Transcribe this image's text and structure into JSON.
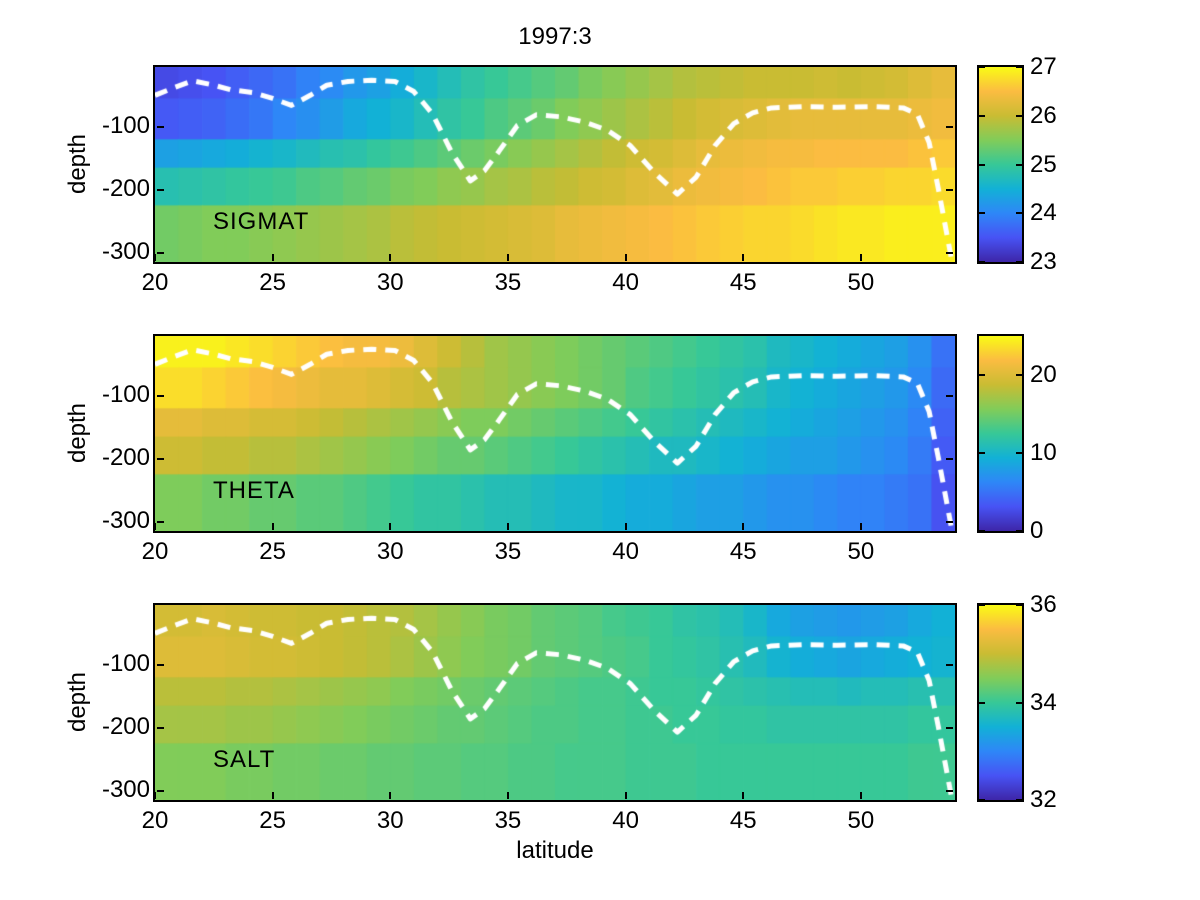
{
  "figure": {
    "title": "1997:3",
    "xlabel": "latitude",
    "ylabel": "depth",
    "background": "#ffffff",
    "colormap": "parula",
    "text_color": "#000000"
  },
  "axes": {
    "x_ticks": [
      20,
      25,
      30,
      35,
      40,
      45,
      50
    ],
    "y_ticks": [
      -100,
      -200,
      -300
    ],
    "x_range": [
      20,
      54
    ],
    "depth_range": [
      -5,
      -315
    ]
  },
  "overlay_line": {
    "description": "mixed-layer-depth dashed contour (repeated on all three panels)",
    "color": "#ffffff",
    "style": "dashed",
    "points": [
      [
        20,
        -50
      ],
      [
        20.8,
        -38
      ],
      [
        21.6,
        -27
      ],
      [
        22.4,
        -33
      ],
      [
        23.2,
        -41
      ],
      [
        24.2,
        -46
      ],
      [
        25,
        -55
      ],
      [
        25.8,
        -66
      ],
      [
        26.6,
        -50
      ],
      [
        27.3,
        -34
      ],
      [
        28.2,
        -28
      ],
      [
        29.2,
        -26
      ],
      [
        30.2,
        -28
      ],
      [
        31,
        -44
      ],
      [
        31.8,
        -80
      ],
      [
        32.6,
        -140
      ],
      [
        33.4,
        -186
      ],
      [
        34,
        -170
      ],
      [
        34.6,
        -140
      ],
      [
        35.4,
        -98
      ],
      [
        36.2,
        -81
      ],
      [
        37.2,
        -84
      ],
      [
        38.2,
        -92
      ],
      [
        39.2,
        -105
      ],
      [
        40.2,
        -130
      ],
      [
        41.2,
        -172
      ],
      [
        42.2,
        -207
      ],
      [
        43,
        -180
      ],
      [
        43.8,
        -130
      ],
      [
        44.6,
        -95
      ],
      [
        45.4,
        -78
      ],
      [
        46.2,
        -70
      ],
      [
        47.5,
        -68
      ],
      [
        49,
        -69
      ],
      [
        50.5,
        -68
      ],
      [
        51.8,
        -70
      ],
      [
        52.4,
        -80
      ],
      [
        52.9,
        -125
      ],
      [
        53.3,
        -200
      ],
      [
        53.7,
        -280
      ],
      [
        54,
        -340
      ]
    ]
  },
  "chart_data": [
    {
      "type": "heatmap",
      "name": "sigmat",
      "label": "SIGMAT",
      "x_start": 20,
      "x_step": 1,
      "n_cols": 34,
      "depth_edges": [
        -5,
        -55,
        -120,
        -165,
        -225,
        -315
      ],
      "colorbar": {
        "min": 23,
        "max": 27,
        "ticks": [
          23,
          24,
          25,
          26,
          27
        ]
      },
      "values": [
        [
          23.4,
          23.45,
          23.5,
          23.6,
          23.7,
          23.8,
          23.95,
          24.05,
          24.2,
          24.3,
          24.45,
          24.6,
          24.75,
          24.9,
          25.0,
          25.1,
          25.2,
          25.3,
          25.45,
          25.55,
          25.65,
          25.75,
          25.85,
          25.9,
          25.95,
          26.0,
          26.0,
          26.0,
          26.05,
          26.0,
          26.05,
          26.1,
          26.2,
          26.3
        ],
        [
          23.55,
          23.6,
          23.65,
          23.75,
          23.85,
          24.0,
          24.1,
          24.25,
          24.4,
          24.5,
          24.6,
          24.75,
          24.9,
          25.0,
          25.15,
          25.25,
          25.35,
          25.5,
          25.6,
          25.7,
          25.8,
          25.9,
          26.0,
          26.1,
          26.15,
          26.2,
          26.25,
          26.3,
          26.3,
          26.3,
          26.3,
          26.3,
          26.35,
          26.4
        ],
        [
          24.3,
          24.35,
          24.4,
          24.45,
          24.55,
          24.6,
          24.7,
          24.8,
          24.85,
          24.95,
          25.05,
          25.15,
          25.25,
          25.35,
          25.45,
          25.55,
          25.65,
          25.75,
          25.85,
          25.95,
          26.05,
          26.1,
          26.2,
          26.3,
          26.35,
          26.4,
          26.45,
          26.45,
          26.5,
          26.5,
          26.5,
          26.5,
          26.55,
          26.6
        ],
        [
          24.8,
          24.85,
          24.9,
          24.95,
          25.0,
          25.05,
          25.15,
          25.2,
          25.3,
          25.35,
          25.45,
          25.5,
          25.6,
          25.65,
          25.75,
          25.8,
          25.9,
          25.95,
          26.05,
          26.1,
          26.2,
          26.25,
          26.35,
          26.4,
          26.45,
          26.5,
          26.55,
          26.6,
          26.6,
          26.65,
          26.65,
          26.7,
          26.7,
          26.75
        ],
        [
          25.4,
          25.45,
          25.5,
          25.5,
          25.55,
          25.6,
          25.65,
          25.7,
          25.75,
          25.8,
          25.9,
          25.95,
          26.0,
          26.05,
          26.1,
          26.15,
          26.2,
          26.3,
          26.35,
          26.4,
          26.45,
          26.5,
          26.55,
          26.6,
          26.65,
          26.7,
          26.7,
          26.75,
          26.8,
          26.85,
          26.85,
          26.9,
          26.9,
          26.9
        ]
      ]
    },
    {
      "type": "heatmap",
      "name": "theta",
      "label": "THETA",
      "x_start": 20,
      "x_step": 1,
      "n_cols": 34,
      "depth_edges": [
        -5,
        -55,
        -120,
        -165,
        -225,
        -315
      ],
      "colorbar": {
        "min": 0,
        "max": 25,
        "ticks": [
          0,
          10,
          20
        ]
      },
      "values": [
        [
          24.5,
          24.5,
          24.5,
          24.0,
          23.5,
          23.0,
          22.5,
          22.0,
          21.5,
          21.5,
          21.0,
          20.0,
          19.0,
          18.0,
          17.0,
          16.5,
          16.0,
          15.5,
          15.0,
          14.5,
          14.0,
          13.5,
          13.0,
          12.5,
          12.0,
          11.5,
          10.5,
          10.0,
          9.5,
          9.0,
          8.5,
          8.0,
          7.0,
          5.0
        ],
        [
          23.5,
          23.5,
          23.0,
          22.5,
          22.0,
          21.5,
          21.0,
          20.5,
          20.5,
          20.0,
          19.5,
          19.0,
          18.0,
          17.5,
          17.0,
          16.5,
          16.0,
          15.5,
          15.0,
          14.5,
          13.5,
          13.0,
          12.5,
          12.0,
          11.5,
          11.0,
          10.0,
          9.5,
          9.0,
          8.5,
          8.0,
          7.5,
          6.5,
          4.5
        ],
        [
          20.5,
          20.5,
          20.0,
          20.0,
          19.5,
          19.5,
          19.0,
          18.5,
          18.0,
          17.5,
          17.0,
          16.5,
          16.0,
          15.5,
          15.5,
          15.0,
          14.5,
          14.0,
          13.5,
          13.0,
          12.5,
          12.0,
          11.5,
          11.0,
          10.5,
          10.0,
          9.5,
          9.0,
          8.5,
          8.0,
          7.5,
          7.0,
          6.0,
          4.0
        ],
        [
          19.0,
          19.0,
          18.5,
          18.5,
          18.0,
          18.0,
          17.5,
          17.0,
          16.5,
          16.0,
          15.5,
          15.0,
          14.5,
          14.5,
          14.0,
          13.5,
          13.0,
          12.5,
          12.0,
          11.5,
          11.0,
          10.5,
          10.5,
          10.0,
          9.5,
          9.0,
          8.5,
          8.0,
          8.0,
          7.5,
          7.0,
          6.5,
          5.5,
          3.5
        ],
        [
          15.5,
          15.5,
          15.0,
          15.0,
          14.5,
          14.5,
          14.0,
          14.0,
          13.5,
          13.0,
          12.5,
          12.0,
          12.0,
          11.5,
          11.0,
          11.0,
          10.5,
          10.0,
          10.0,
          9.5,
          9.0,
          9.0,
          8.5,
          8.0,
          8.0,
          7.5,
          7.0,
          7.0,
          6.5,
          6.0,
          6.0,
          5.5,
          5.0,
          3.0
        ]
      ]
    },
    {
      "type": "heatmap",
      "name": "salt",
      "label": "SALT",
      "x_start": 20,
      "x_step": 1,
      "n_cols": 34,
      "depth_edges": [
        -5,
        -55,
        -120,
        -165,
        -225,
        -315
      ],
      "colorbar": {
        "min": 32,
        "max": 36,
        "ticks": [
          32,
          34,
          36
        ]
      },
      "values": [
        [
          35.1,
          35.1,
          35.15,
          35.1,
          35.05,
          35.05,
          35.0,
          35.0,
          34.95,
          34.9,
          34.85,
          34.75,
          34.65,
          34.55,
          34.45,
          34.4,
          34.3,
          34.25,
          34.2,
          34.1,
          34.05,
          34.0,
          33.9,
          33.85,
          33.75,
          33.6,
          33.4,
          33.3,
          33.25,
          33.2,
          33.25,
          33.3,
          33.4,
          33.5
        ],
        [
          35.2,
          35.2,
          35.2,
          35.15,
          35.1,
          35.1,
          35.05,
          35.0,
          34.95,
          34.9,
          34.8,
          34.7,
          34.6,
          34.5,
          34.45,
          34.4,
          34.3,
          34.25,
          34.2,
          34.15,
          34.1,
          34.0,
          33.95,
          33.9,
          33.8,
          33.7,
          33.55,
          33.45,
          33.4,
          33.35,
          33.4,
          33.45,
          33.5,
          33.55
        ],
        [
          34.9,
          34.9,
          34.9,
          34.85,
          34.85,
          34.8,
          34.75,
          34.7,
          34.65,
          34.6,
          34.5,
          34.45,
          34.4,
          34.35,
          34.3,
          34.25,
          34.2,
          34.15,
          34.1,
          34.1,
          34.05,
          34.0,
          34.0,
          33.95,
          33.9,
          33.85,
          33.8,
          33.75,
          33.75,
          33.7,
          33.75,
          33.75,
          33.8,
          33.8
        ],
        [
          34.75,
          34.75,
          34.75,
          34.7,
          34.7,
          34.65,
          34.6,
          34.55,
          34.5,
          34.45,
          34.4,
          34.35,
          34.3,
          34.3,
          34.25,
          34.2,
          34.15,
          34.15,
          34.1,
          34.1,
          34.05,
          34.05,
          34.0,
          34.0,
          33.95,
          33.95,
          33.9,
          33.9,
          33.9,
          33.9,
          33.9,
          33.9,
          33.95,
          33.95
        ],
        [
          34.5,
          34.5,
          34.5,
          34.45,
          34.45,
          34.4,
          34.4,
          34.35,
          34.35,
          34.3,
          34.3,
          34.25,
          34.25,
          34.2,
          34.2,
          34.15,
          34.15,
          34.1,
          34.1,
          34.1,
          34.05,
          34.05,
          34.05,
          34.0,
          34.0,
          34.0,
          34.0,
          34.0,
          34.0,
          34.0,
          34.0,
          34.0,
          34.05,
          34.05
        ]
      ]
    }
  ]
}
